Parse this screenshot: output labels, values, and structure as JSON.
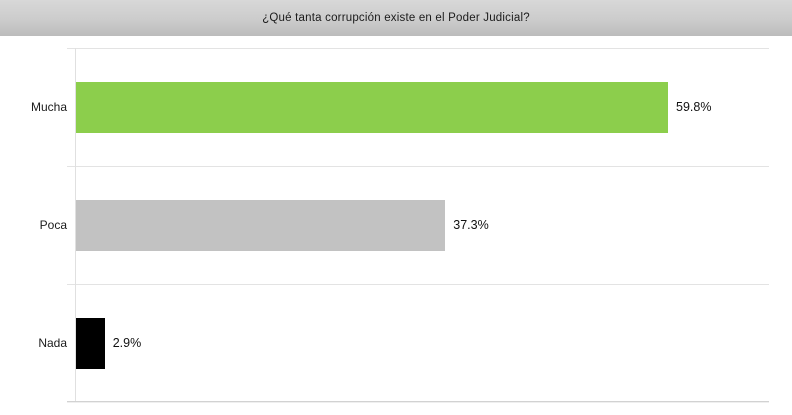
{
  "header": {
    "title": "¿Qué tanta corrupción existe en el Poder Judicial?"
  },
  "chart_data": {
    "type": "bar",
    "orientation": "horizontal",
    "title": "¿Qué tanta corrupción existe en el Poder Judicial?",
    "categories": [
      "Mucha",
      "Poca",
      "Nada"
    ],
    "values": [
      59.8,
      37.3,
      2.9
    ],
    "value_labels": [
      "59.8%",
      "37.3%",
      "2.9%"
    ],
    "bar_colors": [
      "#8cce4c",
      "#c2c2c2",
      "#000000"
    ],
    "xlabel": "",
    "ylabel": "",
    "xlim": [
      0,
      70
    ],
    "grid": "horizontal category-boundary gridlines",
    "legend": "none",
    "value_label_position": "outside-end"
  },
  "colors": {
    "header_gradient_top": "#d8d8d8",
    "header_gradient_bottom": "#bcbcbc",
    "gridline": "#e3e3e3",
    "bottom_axis": "#d2d2d2",
    "text": "#1b1b1b",
    "background": "#ffffff"
  }
}
